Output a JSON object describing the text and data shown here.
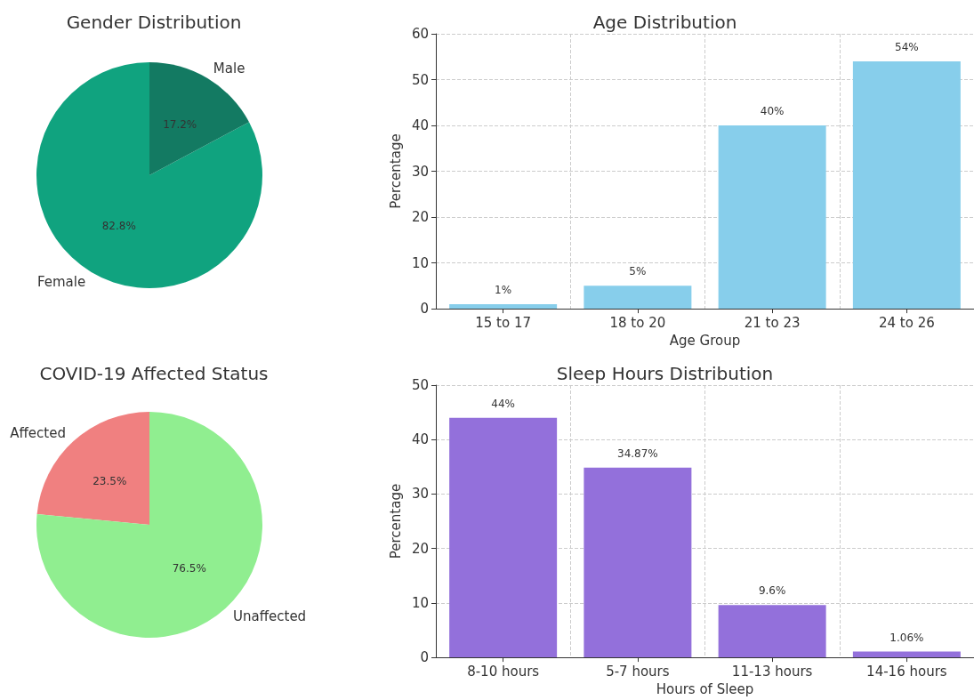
{
  "chart_data": [
    {
      "type": "pie",
      "title": "Gender Distribution",
      "categories": [
        "Female",
        "Male"
      ],
      "values": [
        82.8,
        17.2
      ],
      "colors": [
        "#10a37f",
        "#137a62"
      ],
      "value_labels": [
        "82.8%",
        "17.2%"
      ]
    },
    {
      "type": "bar",
      "title": "Age Distribution",
      "xlabel": "Age Group",
      "ylabel": "Percentage",
      "categories": [
        "15 to 17",
        "18 to 20",
        "21 to 23",
        "24 to 26"
      ],
      "values": [
        1,
        5,
        40,
        54
      ],
      "color": "#87ceeb",
      "value_labels": [
        "1%",
        "5%",
        "40%",
        "54%"
      ],
      "ylim": [
        0,
        60
      ],
      "yticks": [
        0,
        10,
        20,
        30,
        40,
        50,
        60
      ],
      "grid": true
    },
    {
      "type": "pie",
      "title": "COVID-19 Affected Status",
      "categories": [
        "Affected",
        "Unaffected"
      ],
      "values": [
        23.5,
        76.5
      ],
      "colors": [
        "#f08080",
        "#90ee90"
      ],
      "value_labels": [
        "23.5%",
        "76.5%"
      ]
    },
    {
      "type": "bar",
      "title": "Sleep Hours Distribution",
      "xlabel": "Hours of Sleep",
      "ylabel": "Percentage",
      "categories": [
        "8-10 hours",
        "5-7 hours",
        "11-13 hours",
        "14-16 hours"
      ],
      "values": [
        44,
        34.87,
        9.6,
        1.06
      ],
      "color": "#9370db",
      "value_labels": [
        "44%",
        "34.87%",
        "9.6%",
        "1.06%"
      ],
      "ylim": [
        0,
        50
      ],
      "yticks": [
        0,
        10,
        20,
        30,
        40,
        50
      ],
      "grid": true
    }
  ]
}
